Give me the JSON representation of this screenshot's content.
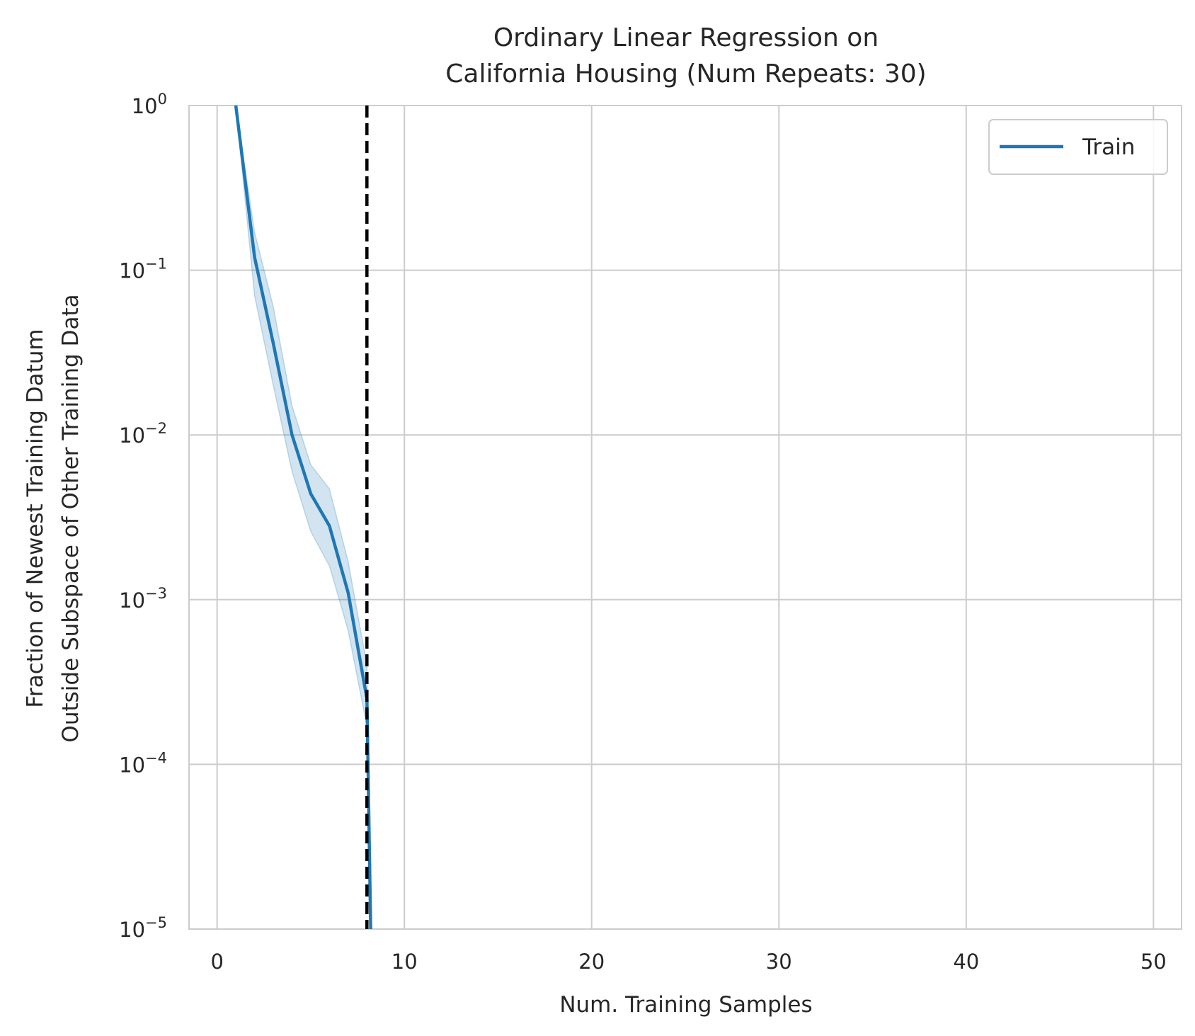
{
  "chart_data": {
    "type": "line",
    "title": [
      "Ordinary Linear Regression on",
      "California Housing (Num Repeats: 30)"
    ],
    "xlabel": "Num. Training Samples",
    "ylabel": [
      "Fraction of Newest Training Datum",
      "Outside Subspace of Other Training Data"
    ],
    "xlim": [
      -1.5,
      51.5
    ],
    "ylim": [
      1e-05,
      1
    ],
    "yscale": "log",
    "x_ticks": [
      0,
      10,
      20,
      30,
      40,
      50
    ],
    "x_tick_labels": [
      "0",
      "10",
      "20",
      "30",
      "40",
      "50"
    ],
    "y_ticks": [
      {
        "value": 1,
        "base": "10",
        "exp": "0"
      },
      {
        "value": 0.1,
        "base": "10",
        "exp": "−1"
      },
      {
        "value": 0.01,
        "base": "10",
        "exp": "−2"
      },
      {
        "value": 0.001,
        "base": "10",
        "exp": "−3"
      },
      {
        "value": 0.0001,
        "base": "10",
        "exp": "−4"
      },
      {
        "value": 1e-05,
        "base": "10",
        "exp": "−5"
      }
    ],
    "grid": true,
    "legend_position": "top-right",
    "vline": {
      "x": 8,
      "style": "dashed",
      "color": "#000000"
    },
    "series": [
      {
        "name": "Train",
        "color": "#1f77b4",
        "x": [
          1,
          2,
          3,
          4,
          5,
          6,
          7,
          8,
          8.2
        ],
        "y": [
          1.0,
          0.12,
          0.036,
          0.01,
          0.0044,
          0.0028,
          0.0011,
          0.00025,
          1e-05
        ],
        "band_lower": [
          1.0,
          0.07,
          0.02,
          0.006,
          0.0026,
          0.0016,
          0.00065,
          0.00017,
          1e-05
        ],
        "band_upper": [
          1.0,
          0.17,
          0.06,
          0.015,
          0.0066,
          0.0047,
          0.0017,
          0.0004,
          1e-05
        ]
      }
    ]
  }
}
